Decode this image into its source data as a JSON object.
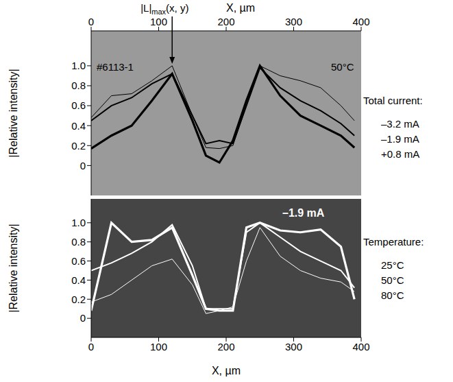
{
  "chart_data": [
    {
      "type": "line",
      "x_label": "X, µm",
      "y_label": "|Relative intensity|",
      "x": [
        0,
        30,
        60,
        90,
        120,
        150,
        170,
        190,
        210,
        230,
        250,
        280,
        310,
        340,
        370,
        390
      ],
      "xlim": [
        0,
        400
      ],
      "xticks": [
        0,
        100,
        200,
        300,
        400
      ],
      "ylim": [
        -0.3,
        1.35
      ],
      "yticks": [
        0,
        {
          "value": 0.2,
          "label": "0.2"
        },
        {
          "value": 0.4,
          "label": "0.4"
        },
        {
          "value": 0.6,
          "label": "0.6"
        },
        {
          "value": 0.8,
          "label": "0.8"
        },
        {
          "value": 1,
          "label": "1.0"
        }
      ],
      "legend": "right",
      "legend_title": "Total current:",
      "annotations": [
        "#6113-1",
        "50°C"
      ],
      "pointer": {
        "label": "|L|",
        "subscript": "max",
        "suffix": "(x, y)",
        "x": 120
      },
      "series": [
        {
          "name": "–3.2 mA",
          "color": "#000000",
          "values": [
            0.48,
            0.7,
            0.72,
            0.85,
            1.0,
            0.5,
            0.18,
            0.17,
            0.2,
            0.6,
            1.0,
            0.9,
            0.85,
            0.78,
            0.6,
            0.45
          ]
        },
        {
          "name": "–1.9 mA",
          "color": "#000000",
          "values": [
            0.45,
            0.6,
            0.68,
            0.82,
            0.92,
            0.5,
            0.22,
            0.25,
            0.22,
            0.6,
            0.98,
            0.78,
            0.65,
            0.55,
            0.42,
            0.3
          ]
        },
        {
          "name": "+0.8 mA",
          "color": "#000000",
          "values": [
            0.17,
            0.3,
            0.4,
            0.65,
            0.92,
            0.45,
            0.1,
            0.03,
            0.25,
            0.65,
            1.0,
            0.7,
            0.5,
            0.4,
            0.3,
            0.18
          ]
        }
      ]
    },
    {
      "type": "line",
      "x_label": "X, µm",
      "y_label": "|Relative intensity|",
      "x": [
        0,
        30,
        60,
        90,
        120,
        150,
        170,
        190,
        210,
        230,
        250,
        280,
        310,
        340,
        370,
        390
      ],
      "xlim": [
        0,
        400
      ],
      "xticks": [
        0,
        100,
        200,
        300,
        400
      ],
      "ylim": [
        -0.2,
        1.25
      ],
      "yticks": [
        0,
        {
          "value": 0.2,
          "label": "0.2"
        },
        {
          "value": 0.4,
          "label": "0.4"
        },
        {
          "value": 0.6,
          "label": "0.6"
        },
        {
          "value": 0.8,
          "label": "0.8"
        },
        {
          "value": 1,
          "label": "1.0"
        }
      ],
      "legend": "right",
      "legend_title": "Temperature:",
      "annotations": [
        "–1.9 mA"
      ],
      "series": [
        {
          "name": "25°C",
          "color": "#ffffff",
          "values": [
            0.17,
            0.25,
            0.4,
            0.55,
            0.62,
            0.35,
            0.05,
            0.08,
            0.12,
            0.6,
            0.95,
            0.65,
            0.5,
            0.42,
            0.38,
            0.28
          ]
        },
        {
          "name": "50°C",
          "color": "#ffffff",
          "values": [
            0.5,
            0.58,
            0.68,
            0.8,
            0.98,
            0.55,
            0.1,
            0.1,
            0.1,
            0.9,
            1.0,
            0.85,
            0.7,
            0.6,
            0.5,
            0.32
          ]
        },
        {
          "name": "80°C",
          "color": "#ffffff",
          "values": [
            0.08,
            1.0,
            0.8,
            0.82,
            0.95,
            0.45,
            0.1,
            0.08,
            0.08,
            0.95,
            1.0,
            0.92,
            0.9,
            0.93,
            0.75,
            0.2
          ]
        }
      ]
    }
  ]
}
